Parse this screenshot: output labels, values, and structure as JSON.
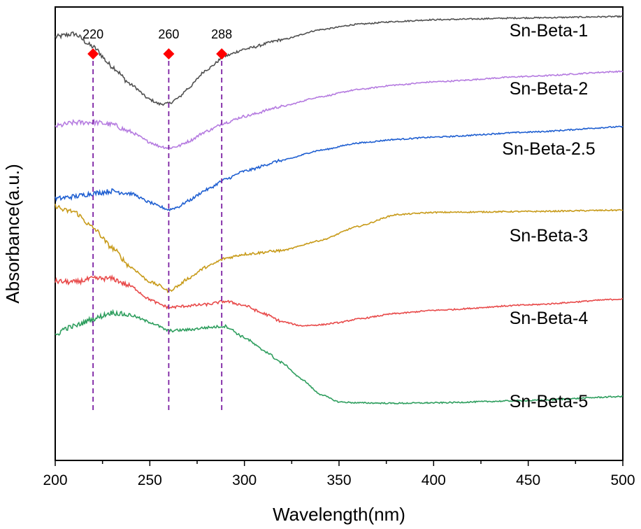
{
  "chart_data": {
    "type": "line",
    "xlabel": "Wavelength(nm)",
    "ylabel": "Absorbance(a.u.)",
    "xlim": [
      200,
      500
    ],
    "ylim": [
      0,
      100
    ],
    "xticks": [
      "200",
      "250",
      "300",
      "350",
      "400",
      "450",
      "500"
    ],
    "yticks_shown": false,
    "grid": false,
    "legend": "labels placed at the right end of each curve",
    "marker_color": "#ff0000",
    "marker_line_color": "#7b1fa2",
    "peak_markers": [
      {
        "x": 220,
        "label": "220"
      },
      {
        "x": 260,
        "label": "260"
      },
      {
        "x": 288,
        "label": "288"
      }
    ],
    "series": [
      {
        "name": "Sn-Beta-1",
        "color": "#505050",
        "x": [
          200,
          210,
          220,
          230,
          240,
          250,
          255,
          260,
          265,
          270,
          280,
          290,
          300,
          320,
          340,
          360,
          380,
          400,
          450,
          500
        ],
        "y": [
          93.4,
          94.1,
          91.2,
          86.9,
          82.9,
          79.6,
          78.6,
          78.7,
          79.9,
          82,
          86.2,
          89.2,
          90.7,
          92.8,
          95,
          96.2,
          96.8,
          97.2,
          97.6,
          97.9
        ]
      },
      {
        "name": "Sn-Beta-2",
        "color": "#b57be0",
        "x": [
          200,
          210,
          220,
          230,
          240,
          250,
          255,
          260,
          265,
          270,
          280,
          290,
          300,
          320,
          340,
          360,
          380,
          400,
          450,
          500
        ],
        "y": [
          73.7,
          74.5,
          74.6,
          74.1,
          72.4,
          70.2,
          69.3,
          68.9,
          69.3,
          70.3,
          72.6,
          74.5,
          75.9,
          78.1,
          80.2,
          81.8,
          82.8,
          83.5,
          84.7,
          85.8
        ]
      },
      {
        "name": "Sn-Beta-2.5",
        "color": "#1f5fd1",
        "x": [
          200,
          210,
          220,
          230,
          240,
          250,
          255,
          260,
          265,
          270,
          280,
          290,
          300,
          320,
          340,
          360,
          380,
          400,
          450,
          500
        ],
        "y": [
          57.7,
          58.2,
          58.9,
          59.4,
          58.9,
          56.9,
          56,
          55.3,
          55.9,
          57.2,
          59.7,
          62,
          63.8,
          66.2,
          68.4,
          70,
          70.8,
          71.3,
          72.4,
          73.6
        ]
      },
      {
        "name": "Sn-Beta-3",
        "color": "#c89b1a",
        "x": [
          200,
          205,
          210,
          220,
          230,
          240,
          250,
          255,
          260,
          265,
          270,
          280,
          290,
          300,
          320,
          340,
          360,
          380,
          400,
          450,
          500
        ],
        "y": [
          56.2,
          55.1,
          54.9,
          51.3,
          46.9,
          42.6,
          39.4,
          38.6,
          37.3,
          38.5,
          40.1,
          42.7,
          44.6,
          45.5,
          46.3,
          48.5,
          51.6,
          54.2,
          54.7,
          54.9,
          55.2
        ]
      },
      {
        "name": "Sn-Beta-4",
        "color": "#e84a4a",
        "x": [
          200,
          210,
          220,
          230,
          240,
          250,
          255,
          260,
          265,
          270,
          280,
          290,
          300,
          310,
          320,
          330,
          340,
          350,
          360,
          380,
          400,
          450,
          500
        ],
        "y": [
          39.5,
          39.3,
          40.1,
          40.1,
          38.4,
          35.5,
          34.5,
          33.7,
          33.9,
          34.1,
          34.4,
          35.1,
          34.2,
          32.4,
          30.6,
          29.7,
          29.9,
          30.4,
          31.2,
          32.4,
          33.1,
          34.3,
          35.6
        ]
      },
      {
        "name": "Sn-Beta-5",
        "color": "#2e9e5e",
        "x": [
          200,
          205,
          210,
          220,
          230,
          240,
          250,
          260,
          270,
          280,
          290,
          300,
          310,
          320,
          330,
          340,
          350,
          360,
          380,
          400,
          450,
          500
        ],
        "y": [
          27.5,
          29.1,
          29.6,
          31.2,
          32.6,
          32,
          30.5,
          28.6,
          28.8,
          29.3,
          29.6,
          27.1,
          24.3,
          21.5,
          18,
          14.6,
          12.9,
          12.7,
          12.6,
          12.7,
          13.2,
          14.1
        ]
      }
    ]
  }
}
